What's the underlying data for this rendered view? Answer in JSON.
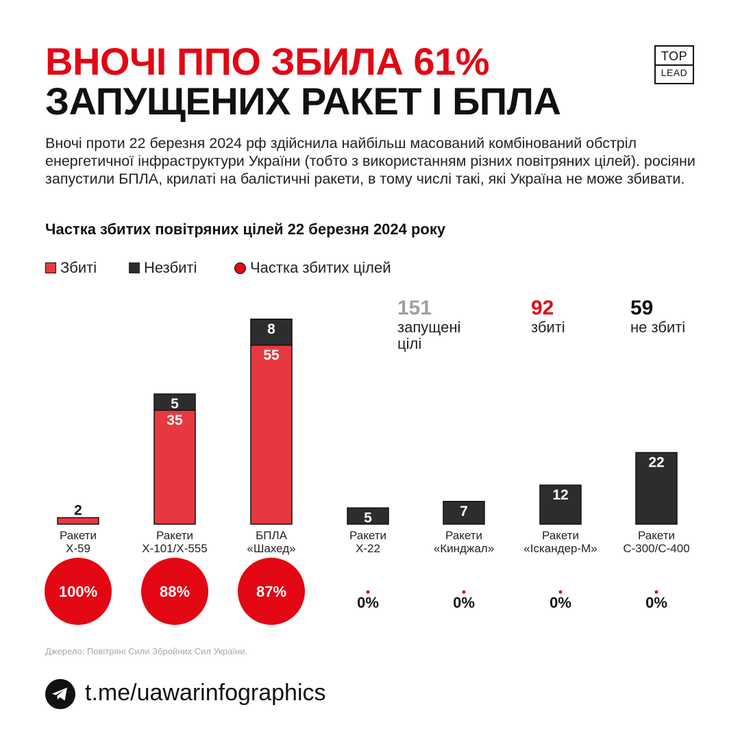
{
  "header": {
    "title_line1": "ВНОЧІ ППО ЗБИЛА 61%",
    "title_line2": "ЗАПУЩЕНИХ РАКЕТ І БПЛА",
    "logo_line1": "TOP",
    "logo_line2": "LEAD"
  },
  "intro": "Вночі проти 22 березня 2024 рф здійснила найбільш масований комбінований обстріл енергетичної інфраструктури України (тобто з використанням різних повітряних цілей). росіяни запустили БПЛА, крилаті на балістичні ракети, в тому числі такі, які Україна не може збивати.",
  "colors": {
    "accent_red": "#e30613",
    "bar_red": "#e8383f",
    "bar_dark": "#2d2d2d",
    "stat_gray": "#a0a0a0"
  },
  "stats": {
    "launched": {
      "number": "151",
      "label": "запущені цілі"
    },
    "shot_down": {
      "number": "92",
      "label": "збиті"
    },
    "not_shot": {
      "number": "59",
      "label": "не збиті"
    }
  },
  "source": "Джерело: Повітряні Сили Збройних Сил України.",
  "footer": {
    "link_text": "t.me/uawarinfographics",
    "icon": "telegram-icon"
  },
  "chart_data": {
    "type": "bar",
    "stacked": true,
    "title": "Частка збитих повітряних цілей 22 березня 2024 року",
    "legend": [
      {
        "name": "Збиті",
        "color": "#e8383f"
      },
      {
        "name": "Незбиті",
        "color": "#2d2d2d"
      },
      {
        "name": "Частка збитих цілей",
        "color": "#e30613"
      }
    ],
    "legend_position": "top-left",
    "categories": [
      "Ракети Х-59",
      "Ракети Х-101/Х-555",
      "БПЛА «Шахед»",
      "Ракети Х-22",
      "Ракети «Кинджал»",
      "Ракети «Іскандер-М»",
      "Ракети С-300/С-400"
    ],
    "category_lines": [
      [
        "Ракети",
        "Х-59"
      ],
      [
        "Ракети",
        "Х-101/Х-555"
      ],
      [
        "БПЛА",
        "«Шахед»"
      ],
      [
        "Ракети",
        "Х-22"
      ],
      [
        "Ракети",
        "«Кинджал»"
      ],
      [
        "Ракети",
        "«Іскандер-М»"
      ],
      [
        "Ракети",
        "С-300/С-400"
      ]
    ],
    "series": [
      {
        "name": "Збиті",
        "values": [
          2,
          35,
          55,
          0,
          0,
          0,
          0
        ]
      },
      {
        "name": "Незбиті",
        "values": [
          0,
          5,
          8,
          5,
          7,
          12,
          22
        ]
      }
    ],
    "share_labels": [
      "100%",
      "88%",
      "87%",
      "0%",
      "0%",
      "0%",
      "0%"
    ],
    "share_values": [
      100,
      88,
      87,
      0,
      0,
      0,
      0
    ],
    "grid": false
  }
}
